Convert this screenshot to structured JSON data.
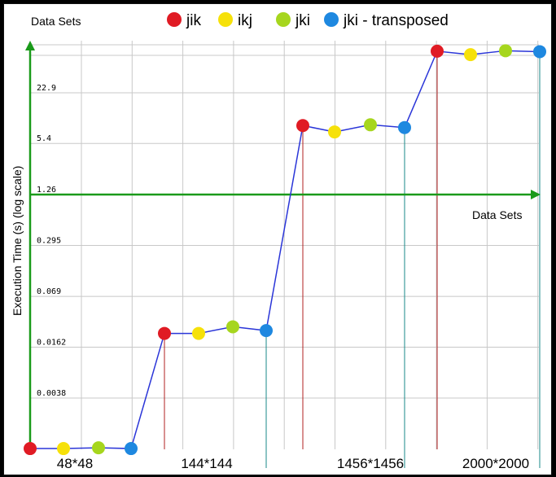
{
  "chart_data": {
    "type": "line",
    "legend_title": "Data Sets",
    "x_axis_label": "Data Sets",
    "ylabel": "Execution Time (s) (log scale)",
    "y_scale": "log",
    "y_ticks": [
      "0.0038",
      "0.0162",
      "0.069",
      "0.295",
      "1.26",
      "5.4",
      "22.9"
    ],
    "categories": [
      "48*48",
      "144*144",
      "1456*1456",
      "2000*2000"
    ],
    "series": [
      {
        "name": "jik",
        "color": "#e01b24"
      },
      {
        "name": "ikj",
        "color": "#f6e10a"
      },
      {
        "name": "jki",
        "color": "#a6d61e"
      },
      {
        "name": "jki - transposed",
        "color": "#1e88e0"
      }
    ],
    "points": [
      {
        "category": "48*48",
        "series": "jik",
        "y": 0.0009
      },
      {
        "category": "48*48",
        "series": "ikj",
        "y": 0.0009
      },
      {
        "category": "48*48",
        "series": "jki",
        "y": 0.00092
      },
      {
        "category": "48*48",
        "series": "jki - transposed",
        "y": 0.0009
      },
      {
        "category": "144*144",
        "series": "jik",
        "y": 0.024
      },
      {
        "category": "144*144",
        "series": "ikj",
        "y": 0.024
      },
      {
        "category": "144*144",
        "series": "jki",
        "y": 0.029
      },
      {
        "category": "144*144",
        "series": "jki - transposed",
        "y": 0.026
      },
      {
        "category": "1456*1456",
        "series": "jik",
        "y": 9.0
      },
      {
        "category": "1456*1456",
        "series": "ikj",
        "y": 7.5
      },
      {
        "category": "1456*1456",
        "series": "jki",
        "y": 9.2
      },
      {
        "category": "1456*1456",
        "series": "jki - transposed",
        "y": 8.5
      },
      {
        "category": "2000*2000",
        "series": "jik",
        "y": 75
      },
      {
        "category": "2000*2000",
        "series": "ikj",
        "y": 68
      },
      {
        "category": "2000*2000",
        "series": "jki",
        "y": 76
      },
      {
        "category": "2000*2000",
        "series": "jki - transposed",
        "y": 74
      }
    ],
    "grid": true,
    "legend_position": "top"
  },
  "colors": {
    "axis": "#1a9a1a",
    "line": "#2a35d8",
    "grid": "#c8c8c8",
    "drop_red": "#b02020",
    "drop_teal": "#1a8a8a"
  }
}
